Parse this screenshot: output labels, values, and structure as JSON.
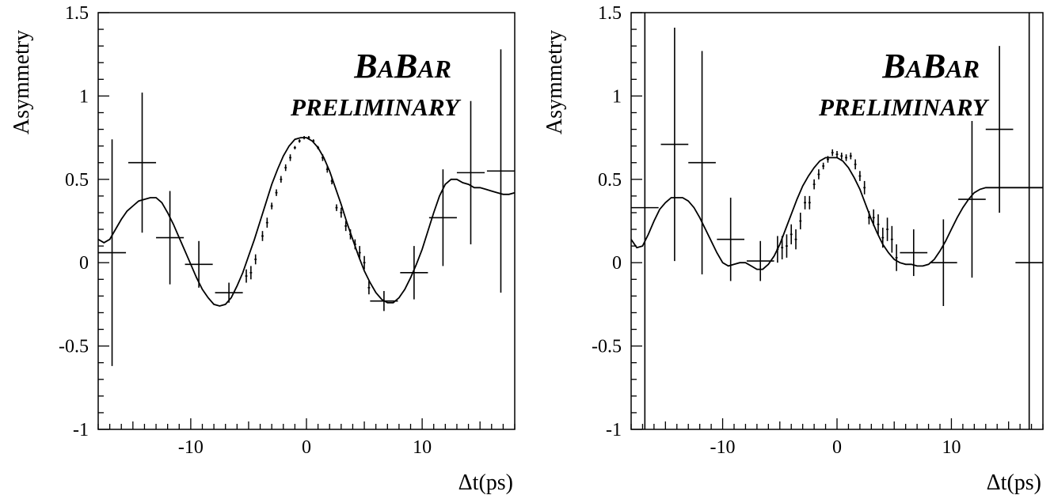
{
  "chart_data": [
    {
      "type": "scatter",
      "xlabel": "Δt(ps)",
      "ylabel": "Asymmetry",
      "xlim": [
        -18,
        18
      ],
      "ylim": [
        -1,
        1.5
      ],
      "xticks": [
        -10,
        0,
        10
      ],
      "yticks": [
        -1,
        -0.5,
        0,
        0.5,
        1,
        1.5
      ],
      "ytick_labels": [
        "-1",
        "-0.5",
        "0",
        "0.5",
        "1",
        "1.5"
      ],
      "xtick_labels": [
        "-10",
        "0",
        "10"
      ],
      "annotation": {
        "brand_caps": [
          "B",
          "A",
          "B",
          "AR"
        ],
        "preliminary": "PRELIMINARY"
      },
      "points": [
        {
          "x": -16.8,
          "y": 0.06,
          "xerr": 1.2,
          "yerr": 0.68
        },
        {
          "x": -14.2,
          "y": 0.6,
          "xerr": 1.2,
          "yerr": 0.42
        },
        {
          "x": -11.8,
          "y": 0.15,
          "xerr": 1.2,
          "yerr": 0.28
        },
        {
          "x": -9.3,
          "y": -0.01,
          "xerr": 1.2,
          "yerr": 0.14
        },
        {
          "x": -6.7,
          "y": -0.18,
          "xerr": 1.2,
          "yerr": 0.06
        },
        {
          "x": -5.2,
          "y": -0.08,
          "xerr": 0.1,
          "yerr": 0.04
        },
        {
          "x": -4.8,
          "y": -0.06,
          "xerr": 0.1,
          "yerr": 0.04
        },
        {
          "x": -4.4,
          "y": 0.02,
          "xerr": 0.1,
          "yerr": 0.03
        },
        {
          "x": -3.8,
          "y": 0.16,
          "xerr": 0.1,
          "yerr": 0.03
        },
        {
          "x": -3.4,
          "y": 0.24,
          "xerr": 0.1,
          "yerr": 0.03
        },
        {
          "x": -3.0,
          "y": 0.34,
          "xerr": 0.1,
          "yerr": 0.02
        },
        {
          "x": -2.6,
          "y": 0.42,
          "xerr": 0.1,
          "yerr": 0.02
        },
        {
          "x": -2.2,
          "y": 0.5,
          "xerr": 0.1,
          "yerr": 0.02
        },
        {
          "x": -1.8,
          "y": 0.57,
          "xerr": 0.1,
          "yerr": 0.02
        },
        {
          "x": -1.4,
          "y": 0.63,
          "xerr": 0.1,
          "yerr": 0.02
        },
        {
          "x": -1.0,
          "y": 0.69,
          "xerr": 0.1,
          "yerr": 0.01
        },
        {
          "x": -0.6,
          "y": 0.73,
          "xerr": 0.1,
          "yerr": 0.01
        },
        {
          "x": -0.2,
          "y": 0.75,
          "xerr": 0.1,
          "yerr": 0.01
        },
        {
          "x": 0.2,
          "y": 0.75,
          "xerr": 0.1,
          "yerr": 0.01
        },
        {
          "x": 0.6,
          "y": 0.73,
          "xerr": 0.1,
          "yerr": 0.01
        },
        {
          "x": 1.0,
          "y": 0.69,
          "xerr": 0.1,
          "yerr": 0.01
        },
        {
          "x": 1.4,
          "y": 0.63,
          "xerr": 0.1,
          "yerr": 0.02
        },
        {
          "x": 1.8,
          "y": 0.56,
          "xerr": 0.1,
          "yerr": 0.02
        },
        {
          "x": 2.2,
          "y": 0.49,
          "xerr": 0.1,
          "yerr": 0.02
        },
        {
          "x": 2.6,
          "y": 0.33,
          "xerr": 0.1,
          "yerr": 0.02
        },
        {
          "x": 3.0,
          "y": 0.3,
          "xerr": 0.1,
          "yerr": 0.03
        },
        {
          "x": 3.4,
          "y": 0.22,
          "xerr": 0.1,
          "yerr": 0.03
        },
        {
          "x": 3.8,
          "y": 0.17,
          "xerr": 0.1,
          "yerr": 0.03
        },
        {
          "x": 4.2,
          "y": 0.11,
          "xerr": 0.1,
          "yerr": 0.03
        },
        {
          "x": 4.6,
          "y": 0.06,
          "xerr": 0.1,
          "yerr": 0.04
        },
        {
          "x": 5.0,
          "y": 0.0,
          "xerr": 0.1,
          "yerr": 0.04
        },
        {
          "x": 5.4,
          "y": -0.15,
          "xerr": 0.1,
          "yerr": 0.04
        },
        {
          "x": 6.7,
          "y": -0.23,
          "xerr": 1.2,
          "yerr": 0.06
        },
        {
          "x": 9.3,
          "y": -0.06,
          "xerr": 1.2,
          "yerr": 0.16
        },
        {
          "x": 11.8,
          "y": 0.27,
          "xerr": 1.2,
          "yerr": 0.29
        },
        {
          "x": 14.2,
          "y": 0.54,
          "xerr": 1.2,
          "yerr": 0.43
        },
        {
          "x": 16.8,
          "y": 0.55,
          "xerr": 1.2,
          "yerr": 0.73
        }
      ],
      "fit_curve": {
        "x": [
          -18,
          -17.5,
          -17,
          -16.5,
          -16,
          -15.5,
          -15,
          -14.5,
          -14,
          -13.5,
          -13,
          -12.5,
          -12,
          -11.5,
          -11,
          -10.5,
          -10,
          -9.5,
          -9,
          -8.5,
          -8,
          -7.5,
          -7,
          -6.5,
          -6,
          -5.5,
          -5,
          -4.5,
          -4,
          -3.5,
          -3,
          -2.5,
          -2,
          -1.5,
          -1,
          -0.5,
          0,
          0.5,
          1,
          1.5,
          2,
          2.5,
          3,
          3.5,
          4,
          4.5,
          5,
          5.5,
          6,
          6.5,
          7,
          7.5,
          8,
          8.5,
          9,
          9.5,
          10,
          10.5,
          11,
          11.5,
          12,
          12.5,
          13,
          13.5,
          14,
          14.5,
          15,
          15.5,
          16,
          16.5,
          17,
          17.5,
          18
        ],
        "y": [
          0.14,
          0.12,
          0.14,
          0.2,
          0.26,
          0.31,
          0.34,
          0.37,
          0.38,
          0.39,
          0.39,
          0.36,
          0.3,
          0.23,
          0.15,
          0.07,
          -0.01,
          -0.09,
          -0.16,
          -0.21,
          -0.25,
          -0.26,
          -0.25,
          -0.21,
          -0.14,
          -0.06,
          0.04,
          0.14,
          0.25,
          0.36,
          0.47,
          0.56,
          0.64,
          0.7,
          0.74,
          0.75,
          0.75,
          0.73,
          0.69,
          0.63,
          0.55,
          0.45,
          0.35,
          0.24,
          0.14,
          0.04,
          -0.05,
          -0.12,
          -0.18,
          -0.22,
          -0.24,
          -0.24,
          -0.21,
          -0.16,
          -0.09,
          -0.01,
          0.08,
          0.19,
          0.3,
          0.4,
          0.47,
          0.5,
          0.5,
          0.48,
          0.47,
          0.45,
          0.45,
          0.44,
          0.43,
          0.42,
          0.41,
          0.41,
          0.42
        ]
      }
    },
    {
      "type": "scatter",
      "xlabel": "Δt(ps)",
      "ylabel": "Asymmetry",
      "xlim": [
        -18,
        18
      ],
      "ylim": [
        -1,
        1.5
      ],
      "xticks": [
        -10,
        0,
        10
      ],
      "yticks": [
        -1,
        -0.5,
        0,
        0.5,
        1,
        1.5
      ],
      "ytick_labels": [
        "-1",
        "-0.5",
        "0",
        "0.5",
        "1",
        "1.5"
      ],
      "xtick_labels": [
        "-10",
        "0",
        "10"
      ],
      "annotation": {
        "brand_caps": [
          "B",
          "A",
          "B",
          "AR"
        ],
        "preliminary": "PRELIMINARY"
      },
      "points": [
        {
          "x": -16.8,
          "y": 0.33,
          "xerr": 1.2,
          "yerr": 2.0
        },
        {
          "x": -14.2,
          "y": 0.71,
          "xerr": 1.2,
          "yerr": 0.7
        },
        {
          "x": -11.8,
          "y": 0.6,
          "xerr": 1.2,
          "yerr": 0.67
        },
        {
          "x": -9.3,
          "y": 0.14,
          "xerr": 1.2,
          "yerr": 0.25
        },
        {
          "x": -6.7,
          "y": 0.01,
          "xerr": 1.2,
          "yerr": 0.12
        },
        {
          "x": -5.2,
          "y": 0.08,
          "xerr": 0.1,
          "yerr": 0.08
        },
        {
          "x": -4.8,
          "y": 0.09,
          "xerr": 0.1,
          "yerr": 0.07
        },
        {
          "x": -4.4,
          "y": 0.1,
          "xerr": 0.1,
          "yerr": 0.07
        },
        {
          "x": -4.0,
          "y": 0.17,
          "xerr": 0.1,
          "yerr": 0.06
        },
        {
          "x": -3.6,
          "y": 0.14,
          "xerr": 0.1,
          "yerr": 0.06
        },
        {
          "x": -3.2,
          "y": 0.25,
          "xerr": 0.1,
          "yerr": 0.05
        },
        {
          "x": -2.8,
          "y": 0.36,
          "xerr": 0.1,
          "yerr": 0.04
        },
        {
          "x": -2.4,
          "y": 0.36,
          "xerr": 0.1,
          "yerr": 0.04
        },
        {
          "x": -2.0,
          "y": 0.47,
          "xerr": 0.1,
          "yerr": 0.03
        },
        {
          "x": -1.6,
          "y": 0.53,
          "xerr": 0.1,
          "yerr": 0.03
        },
        {
          "x": -1.2,
          "y": 0.58,
          "xerr": 0.1,
          "yerr": 0.02
        },
        {
          "x": -0.8,
          "y": 0.62,
          "xerr": 0.1,
          "yerr": 0.02
        },
        {
          "x": -0.4,
          "y": 0.66,
          "xerr": 0.1,
          "yerr": 0.02
        },
        {
          "x": 0.0,
          "y": 0.65,
          "xerr": 0.1,
          "yerr": 0.02
        },
        {
          "x": 0.4,
          "y": 0.64,
          "xerr": 0.1,
          "yerr": 0.02
        },
        {
          "x": 0.8,
          "y": 0.63,
          "xerr": 0.1,
          "yerr": 0.02
        },
        {
          "x": 1.2,
          "y": 0.64,
          "xerr": 0.1,
          "yerr": 0.02
        },
        {
          "x": 1.6,
          "y": 0.59,
          "xerr": 0.1,
          "yerr": 0.03
        },
        {
          "x": 2.0,
          "y": 0.52,
          "xerr": 0.1,
          "yerr": 0.03
        },
        {
          "x": 2.4,
          "y": 0.45,
          "xerr": 0.1,
          "yerr": 0.04
        },
        {
          "x": 2.8,
          "y": 0.27,
          "xerr": 0.1,
          "yerr": 0.04
        },
        {
          "x": 3.2,
          "y": 0.27,
          "xerr": 0.1,
          "yerr": 0.05
        },
        {
          "x": 3.6,
          "y": 0.23,
          "xerr": 0.1,
          "yerr": 0.06
        },
        {
          "x": 4.0,
          "y": 0.15,
          "xerr": 0.1,
          "yerr": 0.06
        },
        {
          "x": 4.4,
          "y": 0.2,
          "xerr": 0.1,
          "yerr": 0.07
        },
        {
          "x": 4.8,
          "y": 0.14,
          "xerr": 0.1,
          "yerr": 0.08
        },
        {
          "x": 5.2,
          "y": 0.03,
          "xerr": 0.1,
          "yerr": 0.08
        },
        {
          "x": 6.7,
          "y": 0.06,
          "xerr": 1.2,
          "yerr": 0.14
        },
        {
          "x": 9.3,
          "y": 0.0,
          "xerr": 1.2,
          "yerr": 0.26
        },
        {
          "x": 11.8,
          "y": 0.38,
          "xerr": 1.2,
          "yerr": 0.47
        },
        {
          "x": 14.2,
          "y": 0.8,
          "xerr": 1.2,
          "yerr": 0.5
        },
        {
          "x": 16.8,
          "y": 0.0,
          "xerr": 1.2,
          "yerr": 1.5
        }
      ],
      "fit_curve": {
        "x": [
          -18,
          -17.5,
          -17,
          -16.5,
          -16,
          -15.5,
          -15,
          -14.5,
          -14,
          -13.5,
          -13,
          -12.5,
          -12,
          -11.5,
          -11,
          -10.5,
          -10,
          -9.5,
          -9,
          -8.5,
          -8,
          -7.5,
          -7,
          -6.5,
          -6,
          -5.5,
          -5,
          -4.5,
          -4,
          -3.5,
          -3,
          -2.5,
          -2,
          -1.5,
          -1,
          -0.5,
          0,
          0.5,
          1,
          1.5,
          2,
          2.5,
          3,
          3.5,
          4,
          4.5,
          5,
          5.5,
          6,
          6.5,
          7,
          7.5,
          8,
          8.5,
          9,
          9.5,
          10,
          10.5,
          11,
          11.5,
          12,
          12.5,
          13,
          13.5,
          14,
          14.5,
          15,
          15.5,
          16,
          16.5,
          17,
          17.5,
          18
        ],
        "y": [
          0.14,
          0.09,
          0.1,
          0.17,
          0.25,
          0.32,
          0.36,
          0.39,
          0.39,
          0.39,
          0.37,
          0.33,
          0.27,
          0.2,
          0.13,
          0.06,
          0.0,
          -0.02,
          -0.01,
          0.0,
          0.0,
          -0.02,
          -0.04,
          -0.04,
          -0.01,
          0.04,
          0.11,
          0.2,
          0.29,
          0.38,
          0.46,
          0.52,
          0.57,
          0.61,
          0.63,
          0.63,
          0.63,
          0.61,
          0.57,
          0.51,
          0.44,
          0.35,
          0.26,
          0.18,
          0.11,
          0.06,
          0.02,
          0.0,
          -0.01,
          -0.01,
          -0.02,
          -0.02,
          -0.01,
          0.02,
          0.07,
          0.13,
          0.2,
          0.27,
          0.33,
          0.38,
          0.42,
          0.44,
          0.45,
          0.45,
          0.45,
          0.45,
          0.45,
          0.45,
          0.45,
          0.45,
          0.45,
          0.45,
          0.45
        ]
      }
    }
  ]
}
